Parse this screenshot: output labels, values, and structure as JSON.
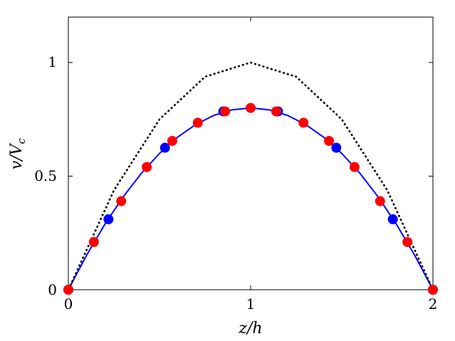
{
  "chart_data": {
    "type": "line",
    "xlabel": "z/h",
    "ylabel": "v/V",
    "ylabel_subscript": "c",
    "xlim": [
      0,
      2
    ],
    "ylim": [
      0,
      1.2
    ],
    "xticks": [
      0,
      1,
      2
    ],
    "yticks": [
      0,
      0.5,
      1
    ],
    "xtick_labels": [
      "0",
      "1",
      "2"
    ],
    "ytick_labels": [
      "0",
      "0.5",
      "1"
    ],
    "grid": false,
    "legend": "none",
    "series": [
      {
        "style": "dotted-line",
        "color": "#000000",
        "x": [
          0,
          0.25,
          0.5,
          0.75,
          1.0,
          1.25,
          1.5,
          1.75,
          2.0
        ],
        "y": [
          0,
          0.4375,
          0.75,
          0.9375,
          1.0,
          0.9375,
          0.75,
          0.4375,
          0
        ]
      },
      {
        "style": "solid-line",
        "color": "#0000ff",
        "x": [
          0,
          0.1,
          0.2,
          0.3,
          0.4,
          0.5,
          0.6,
          0.7,
          0.8,
          0.9,
          1.0,
          1.1,
          1.2,
          1.3,
          1.4,
          1.5,
          1.6,
          1.7,
          1.8,
          1.9,
          2.0
        ],
        "y": [
          0,
          0.152,
          0.288,
          0.408,
          0.512,
          0.6,
          0.672,
          0.728,
          0.768,
          0.792,
          0.8,
          0.792,
          0.768,
          0.728,
          0.672,
          0.6,
          0.512,
          0.408,
          0.288,
          0.152,
          0
        ]
      },
      {
        "style": "markers",
        "color": "#0000ff",
        "x": [
          0,
          0.22,
          0.53,
          0.85,
          1.15,
          1.47,
          1.78,
          2.0
        ],
        "y": [
          0,
          0.31,
          0.625,
          0.785,
          0.785,
          0.625,
          0.31,
          0
        ]
      },
      {
        "style": "markers",
        "color": "#ff0000",
        "x": [
          0,
          0.14,
          0.29,
          0.43,
          0.57,
          0.71,
          0.86,
          1.0,
          1.14,
          1.29,
          1.43,
          1.57,
          1.71,
          1.86,
          2.0
        ],
        "y": [
          0,
          0.21,
          0.39,
          0.54,
          0.655,
          0.735,
          0.785,
          0.8,
          0.785,
          0.735,
          0.655,
          0.54,
          0.39,
          0.21,
          0
        ]
      }
    ]
  }
}
